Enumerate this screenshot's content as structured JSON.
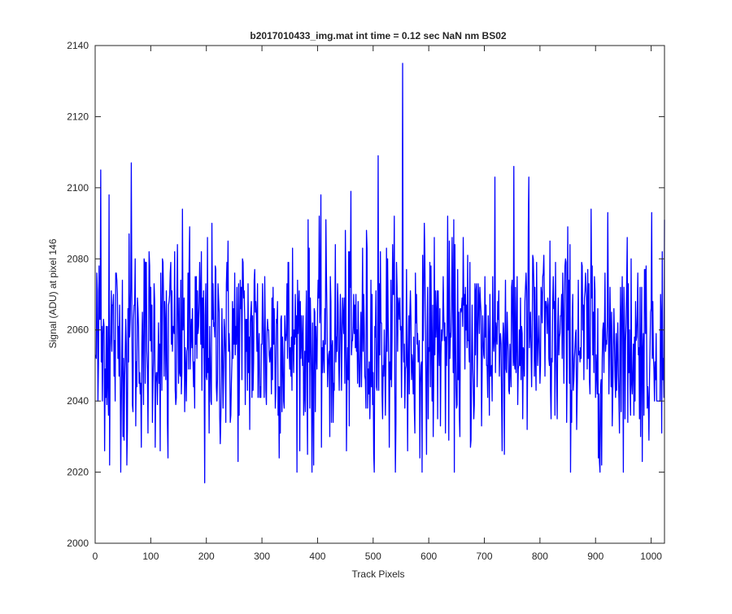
{
  "chart_data": {
    "type": "line",
    "title": "b2017010433_img.mat int time = 0.12 sec  NaN nm BS02",
    "xlabel": "Track Pixels",
    "ylabel": "Signal (ADU) at pixel 146",
    "xlim": [
      0,
      1024
    ],
    "ylim": [
      2000,
      2140
    ],
    "xticks": [
      0,
      100,
      200,
      300,
      400,
      500,
      600,
      700,
      800,
      900,
      1000
    ],
    "yticks": [
      2000,
      2020,
      2040,
      2060,
      2080,
      2100,
      2120,
      2140
    ],
    "grid": false,
    "line_color": "#0000ff",
    "series": [
      {
        "x_start": 1,
        "x_step": 1,
        "x_end": 1024,
        "mean": 2057,
        "std": 15,
        "min": 2017,
        "max": 2135,
        "anchor_points": [
          {
            "x": 1,
            "y": 2053
          },
          {
            "x": 3,
            "y": 2076
          },
          {
            "x": 5,
            "y": 2040
          },
          {
            "x": 8,
            "y": 2063
          },
          {
            "x": 10,
            "y": 2105
          },
          {
            "x": 13,
            "y": 2040
          },
          {
            "x": 25,
            "y": 2098
          },
          {
            "x": 26,
            "y": 2022
          },
          {
            "x": 57,
            "y": 2022
          },
          {
            "x": 65,
            "y": 2107
          },
          {
            "x": 131,
            "y": 2024
          },
          {
            "x": 197,
            "y": 2017
          },
          {
            "x": 390,
            "y": 2020
          },
          {
            "x": 509,
            "y": 2109
          },
          {
            "x": 553,
            "y": 2135
          },
          {
            "x": 562,
            "y": 2026
          },
          {
            "x": 719,
            "y": 2103
          },
          {
            "x": 780,
            "y": 2103
          },
          {
            "x": 911,
            "y": 2022
          },
          {
            "x": 1010,
            "y": 2040
          },
          {
            "x": 1011,
            "y": 2040
          },
          {
            "x": 1012,
            "y": 2040
          },
          {
            "x": 1013,
            "y": 2040
          },
          {
            "x": 1014,
            "y": 2040
          },
          {
            "x": 1015,
            "y": 2040
          },
          {
            "x": 1016,
            "y": 2040
          },
          {
            "x": 1017,
            "y": 2070
          },
          {
            "x": 1020,
            "y": 2082
          },
          {
            "x": 1022,
            "y": 2052
          },
          {
            "x": 1024,
            "y": 2091
          }
        ]
      }
    ]
  }
}
